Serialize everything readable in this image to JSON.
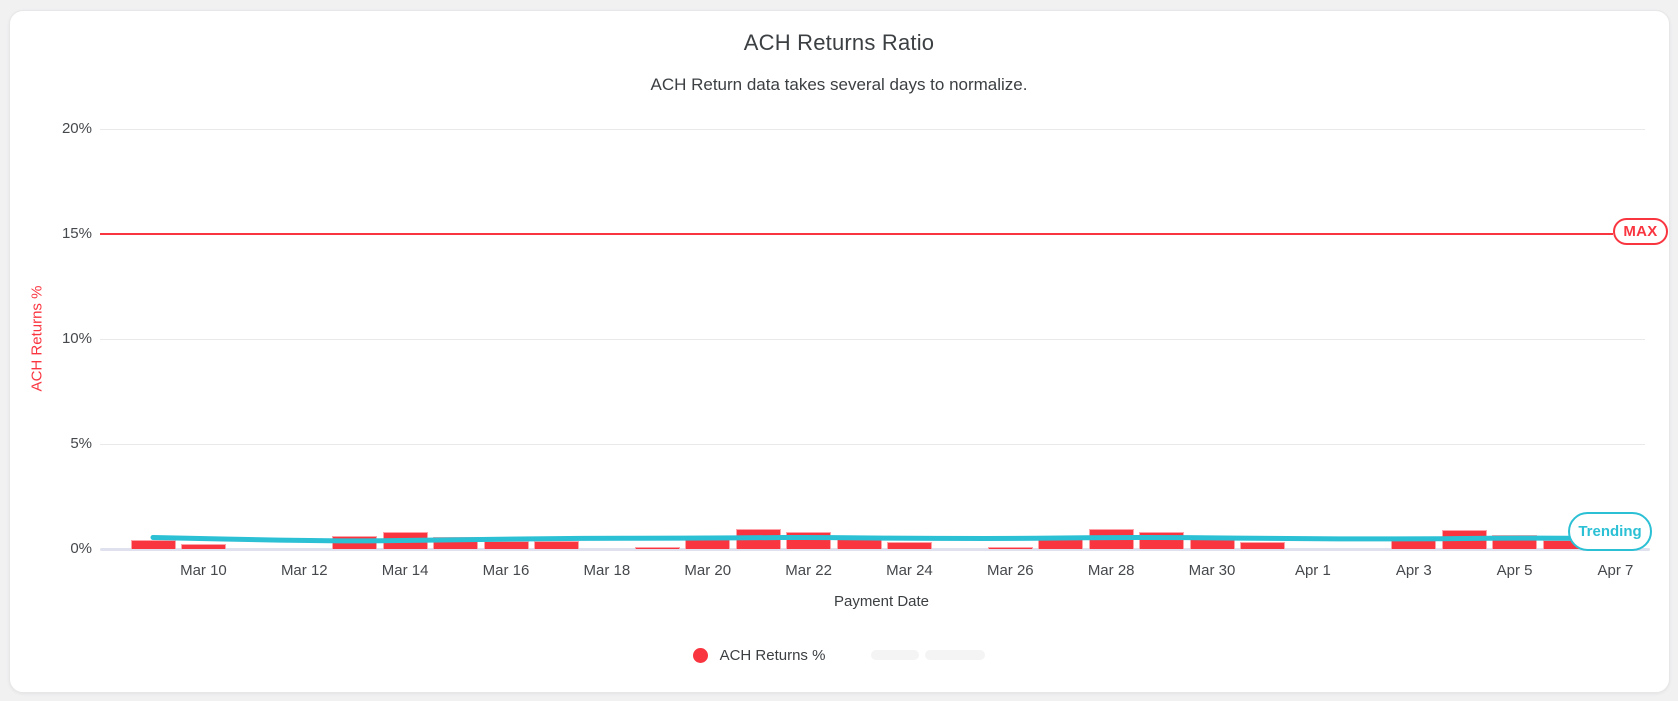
{
  "chart_data": {
    "type": "bar",
    "title": "ACH Returns Ratio",
    "subtitle": "ACH Return data takes several days to normalize.",
    "xlabel": "Payment Date",
    "ylabel": "ACH Returns %",
    "ylim": [
      0,
      20
    ],
    "grid": true,
    "legend_position": "bottom",
    "yticks": [
      {
        "label": "0%",
        "value": 0
      },
      {
        "label": "5%",
        "value": 5
      },
      {
        "label": "10%",
        "value": 10
      },
      {
        "label": "15%",
        "value": 15
      },
      {
        "label": "20%",
        "value": 20
      }
    ],
    "x_tick_labels": [
      "Mar 10",
      "Mar 12",
      "Mar 14",
      "Mar 16",
      "Mar 18",
      "Mar 20",
      "Mar 22",
      "Mar 24",
      "Mar 26",
      "Mar 28",
      "Mar 30",
      "Apr 1",
      "Apr 3",
      "Apr 5",
      "Apr 7"
    ],
    "categories": [
      "Mar 9",
      "Mar 10",
      "Mar 11",
      "Mar 12",
      "Mar 13",
      "Mar 14",
      "Mar 15",
      "Mar 16",
      "Mar 17",
      "Mar 18",
      "Mar 19",
      "Mar 20",
      "Mar 21",
      "Mar 22",
      "Mar 23",
      "Mar 24",
      "Mar 25",
      "Mar 26",
      "Mar 27",
      "Mar 28",
      "Mar 29",
      "Mar 30",
      "Mar 31",
      "Apr 1",
      "Apr 2",
      "Apr 3",
      "Apr 4",
      "Apr 5",
      "Apr 6",
      "Apr 7"
    ],
    "series": [
      {
        "name": "ACH Returns %",
        "type": "bar",
        "color": "#f93540",
        "values": [
          0.45,
          0.25,
          0,
          0,
          0.6,
          0.8,
          0.55,
          0.4,
          0.4,
          0,
          0.1,
          0.6,
          0.95,
          0.8,
          0.5,
          0.35,
          0,
          0.1,
          0.5,
          0.95,
          0.8,
          0.5,
          0.35,
          0,
          0,
          0.45,
          0.9,
          0.65,
          0.45,
          0
        ]
      },
      {
        "name": "Trending",
        "type": "line",
        "color": "#2cc0d5",
        "values": [
          0.55,
          0.5,
          0.44,
          0.4,
          0.38,
          0.4,
          0.44,
          0.47,
          0.5,
          0.51,
          0.51,
          0.52,
          0.54,
          0.55,
          0.53,
          0.51,
          0.5,
          0.5,
          0.52,
          0.55,
          0.55,
          0.53,
          0.51,
          0.49,
          0.48,
          0.48,
          0.5,
          0.52,
          0.51,
          0.5
        ]
      }
    ],
    "max_line": {
      "label": "MAX",
      "value": 15,
      "color": "#f93540"
    },
    "trending_badge": {
      "label": "Trending",
      "color": "#2cc0d5"
    },
    "legend": [
      {
        "label": "ACH Returns %",
        "color": "#f93540"
      }
    ],
    "colors": {
      "bar_fill": "#f93540",
      "bar_edge": "#ffa1a6",
      "trend_line": "#2cc0d5",
      "grid": "#e9e9eb",
      "baseline": "#dfe2ee",
      "text": "#3c4043",
      "tick_text": "#45484c",
      "card_bg": "#ffffff",
      "page_bg": "#f1f1f2"
    }
  }
}
